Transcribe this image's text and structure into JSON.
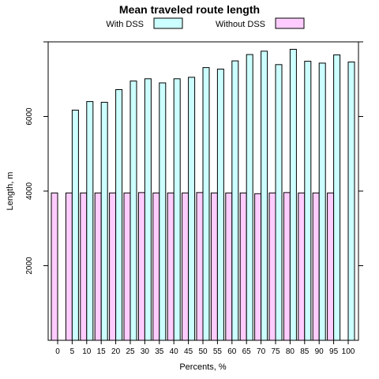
{
  "chart_data": {
    "type": "bar",
    "title": "Mean traveled route length",
    "xlabel": "Percents, %",
    "ylabel": "Length, m",
    "categories": [
      "0",
      "5",
      "10",
      "15",
      "20",
      "25",
      "30",
      "35",
      "40",
      "45",
      "50",
      "55",
      "60",
      "65",
      "70",
      "75",
      "80",
      "85",
      "90",
      "95",
      "100"
    ],
    "series": [
      {
        "name": "With DSS",
        "color": "#CCFFFF",
        "values": [
          null,
          6170,
          6400,
          6380,
          6720,
          6950,
          7010,
          6900,
          7010,
          7050,
          7310,
          7270,
          7490,
          7660,
          7750,
          7390,
          7800,
          7480,
          7430,
          7650,
          7460
        ]
      },
      {
        "name": "Without DSS",
        "color": "#FFCCFF",
        "values": [
          3950,
          3950,
          3950,
          3950,
          3950,
          3950,
          3960,
          3950,
          3950,
          3950,
          3960,
          3950,
          3950,
          3950,
          3930,
          3950,
          3960,
          3950,
          3950,
          3950,
          null
        ]
      }
    ],
    "ylim": [
      0,
      8000
    ],
    "yticks": [
      2000,
      4000,
      6000
    ],
    "grid": false,
    "legend_position": "top"
  }
}
